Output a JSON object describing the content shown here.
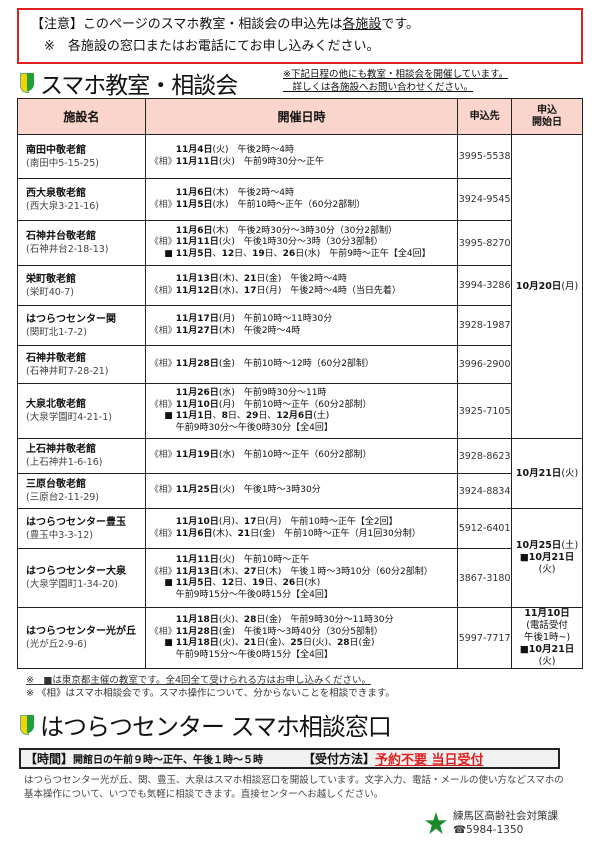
{
  "notice": {
    "line1_a": "【注意】このページのスマホ教室・相談会の申込先は",
    "line1_u": "各施設",
    "line1_b": "です。",
    "line2": "　※　各施設の窓口またはお電話にてお申し込みください。"
  },
  "title1": "スマホ教室・相談会",
  "subnote": [
    "※下記日程の他にも教室・相談会を開催しています。",
    "　詳しくは各施設へお問い合わせください。"
  ],
  "headers": {
    "facility": "施設名",
    "datetime": "開催日時",
    "tel": "申込先",
    "start1": "申込",
    "start2": "開始日"
  },
  "rows": [
    {
      "name": "南田中敬老館",
      "addr": "(南田中5-15-25)",
      "tel": "3995-5538",
      "lines": [
        {
          "p": "",
          "s": [
            [
              "11月4日",
              1
            ],
            [
              "(火)　午後2時～4時",
              0
            ]
          ]
        },
        {
          "p": "《相》",
          "s": [
            [
              "11月11日",
              1
            ],
            [
              "(火)　午前9時30分～正午",
              0
            ]
          ]
        }
      ]
    },
    {
      "name": "西大泉敬老館",
      "addr": "(西大泉3-21-16)",
      "tel": "3924-9545",
      "lines": [
        {
          "p": "",
          "s": [
            [
              "11月6日",
              1
            ],
            [
              "(木)　午後2時～4時",
              0
            ]
          ]
        },
        {
          "p": "《相》",
          "s": [
            [
              "11月5日",
              1
            ],
            [
              "(水)　午前10時～正午（60分2部制）",
              0
            ]
          ]
        }
      ]
    },
    {
      "name": "石神井台敬老館",
      "addr": "(石神井台2-18-13)",
      "tel": "3995-8270",
      "lines": [
        {
          "p": "",
          "s": [
            [
              "11月6日",
              1
            ],
            [
              "(木)　午後2時30分～3時30分（30分2部制）",
              0
            ]
          ]
        },
        {
          "p": "《相》",
          "s": [
            [
              "11月11日",
              1
            ],
            [
              "(火)　午後1時30分～3時（30分3部制）",
              0
            ]
          ]
        },
        {
          "p": "■",
          "s": [
            [
              "11月5日",
              1
            ],
            [
              "、",
              0
            ],
            [
              "12",
              1
            ],
            [
              "日、",
              0
            ],
            [
              "19",
              1
            ],
            [
              "日、",
              0
            ],
            [
              "26",
              1
            ],
            [
              "日(水)　午前9時～正午【全4回】",
              0
            ]
          ]
        }
      ]
    },
    {
      "name": "栄町敬老館",
      "addr": "(栄町40-7)",
      "tel": "3994-3286",
      "lines": [
        {
          "p": "",
          "s": [
            [
              "11月13日",
              1
            ],
            [
              "(木)、",
              0
            ],
            [
              "21",
              1
            ],
            [
              "日(金)　午後2時～4時",
              0
            ]
          ]
        },
        {
          "p": "《相》",
          "s": [
            [
              "11月12日",
              1
            ],
            [
              "(水)、",
              0
            ],
            [
              "17",
              1
            ],
            [
              "日(月)　午後2時～4時（当日先着）",
              0
            ]
          ]
        }
      ]
    },
    {
      "name": "はつらつセンター関",
      "addr": "(関町北1-7-2)",
      "tel": "3928-1987",
      "lines": [
        {
          "p": "",
          "s": [
            [
              "11月17日",
              1
            ],
            [
              "(月)　午前10時～11時30分",
              0
            ]
          ]
        },
        {
          "p": "《相》",
          "s": [
            [
              "11月27日",
              1
            ],
            [
              "(木)　午後2時～4時",
              0
            ]
          ]
        }
      ]
    },
    {
      "name": "石神井敬老館",
      "addr": "(石神井町7-28-21)",
      "tel": "3996-2900",
      "lines": [
        {
          "p": "《相》",
          "s": [
            [
              "11月28日",
              1
            ],
            [
              "(金)　午前10時～12時（60分2部制）",
              0
            ]
          ]
        }
      ]
    },
    {
      "name": "大泉北敬老館",
      "addr": "(大泉学園町4-21-1)",
      "tel": "3925-7105",
      "lines": [
        {
          "p": "",
          "s": [
            [
              "11月26日",
              1
            ],
            [
              "(水)　午前9時30分～11時",
              0
            ]
          ]
        },
        {
          "p": "《相》",
          "s": [
            [
              "11月10日",
              1
            ],
            [
              "(月)　午前10時～正午（60分2部制）",
              0
            ]
          ]
        },
        {
          "p": "■",
          "s": [
            [
              "11月1日",
              1
            ],
            [
              "、",
              0
            ],
            [
              "8",
              1
            ],
            [
              "日、",
              0
            ],
            [
              "29",
              1
            ],
            [
              "日、",
              0
            ],
            [
              "12月6日",
              1
            ],
            [
              "(土)",
              0
            ]
          ]
        },
        {
          "p": "",
          "s": [
            [
              "午前9時30分～午後0時30分【全4回】",
              0
            ]
          ]
        }
      ]
    },
    {
      "name": "上石神井敬老館",
      "addr": "(上石神井1-6-16)",
      "tel": "3928-8623",
      "lines": [
        {
          "p": "《相》",
          "s": [
            [
              "11月19日",
              1
            ],
            [
              "(水)　午前10時～正午（60分2部制）",
              0
            ]
          ]
        }
      ]
    },
    {
      "name": "三原台敬老館",
      "addr": "(三原台2-11-29)",
      "tel": "3924-8834",
      "lines": [
        {
          "p": "《相》",
          "s": [
            [
              "11月25日",
              1
            ],
            [
              "(火)　午後1時～3時30分",
              0
            ]
          ]
        }
      ]
    },
    {
      "name": "はつらつセンター豊玉",
      "addr": "(豊玉中3-3-12)",
      "tel": "5912-6401",
      "lines": [
        {
          "p": "",
          "s": [
            [
              "11月10日",
              1
            ],
            [
              "(月)、",
              0
            ],
            [
              "17",
              1
            ],
            [
              "日(月)　午前10時～正午【全2回】",
              0
            ]
          ]
        },
        {
          "p": "《相》",
          "s": [
            [
              "11月6日",
              1
            ],
            [
              "(木)、",
              0
            ],
            [
              "21",
              1
            ],
            [
              "日(金)　午前10時～正午（月1回30分制）",
              0
            ]
          ]
        }
      ]
    },
    {
      "name": "はつらつセンター大泉",
      "addr": "(大泉学園町1-34-20)",
      "tel": "3867-3180",
      "lines": [
        {
          "p": "",
          "s": [
            [
              "11月11日",
              1
            ],
            [
              "(火)　午前10時～正午",
              0
            ]
          ]
        },
        {
          "p": "《相》",
          "s": [
            [
              "11月13日",
              1
            ],
            [
              "(木)、",
              0
            ],
            [
              "27",
              1
            ],
            [
              "日(木)　午後１時～3時10分（60分2部制）",
              0
            ]
          ]
        },
        {
          "p": "■",
          "s": [
            [
              "11月5日",
              1
            ],
            [
              "、",
              0
            ],
            [
              "12",
              1
            ],
            [
              "日、",
              0
            ],
            [
              "19",
              1
            ],
            [
              "日、",
              0
            ],
            [
              "26",
              1
            ],
            [
              "日(水)",
              0
            ]
          ]
        },
        {
          "p": "",
          "s": [
            [
              "午前9時15分～午後0時15分【全4回】",
              0
            ]
          ]
        }
      ]
    },
    {
      "name": "はつらつセンター光が丘",
      "addr": "(光が丘2-9-6)",
      "tel": "5997-7717",
      "lines": [
        {
          "p": "",
          "s": [
            [
              "11月18日",
              1
            ],
            [
              "(火)、",
              0
            ],
            [
              "28",
              1
            ],
            [
              "日(金)　午前9時30分～11時30分",
              0
            ]
          ]
        },
        {
          "p": "《相》",
          "s": [
            [
              "11月28日",
              1
            ],
            [
              "(金)　午後1時～3時40分（30分5部制）",
              0
            ]
          ]
        },
        {
          "p": "■",
          "s": [
            [
              "11月18日",
              1
            ],
            [
              "(火)、",
              0
            ],
            [
              "21",
              1
            ],
            [
              "日(金)、",
              0
            ],
            [
              "25",
              1
            ],
            [
              "日(火)、",
              0
            ],
            [
              "28",
              1
            ],
            [
              "日(金)",
              0
            ]
          ]
        },
        {
          "p": "",
          "s": [
            [
              "午前9時15分～午後0時15分【全4回】",
              0
            ]
          ]
        }
      ]
    }
  ],
  "start_groups": [
    {
      "span": 7,
      "lines": [
        [
          [
            "10月20日",
            1
          ],
          [
            "(月)",
            0
          ]
        ]
      ]
    },
    {
      "span": 2,
      "lines": [
        [
          [
            "10月21日",
            1
          ],
          [
            "(火)",
            0
          ]
        ]
      ]
    },
    {
      "span": 2,
      "lines": [
        [
          [
            "10月25日",
            1
          ],
          [
            "(土)",
            0
          ]
        ],
        [
          [
            "■10月21日",
            1
          ],
          [
            "(火)",
            0
          ]
        ]
      ]
    },
    {
      "span": 1,
      "lines": [
        [
          [
            "11月10日",
            1
          ]
        ],
        [
          [
            "(電話受付",
            0
          ]
        ],
        [
          [
            "午後1時~)",
            0
          ]
        ],
        [
          [
            "■10月21日",
            1
          ],
          [
            "(火)",
            0
          ]
        ]
      ]
    }
  ],
  "notes": [
    "※　■は東京都主催の教室です。全4回全て受けられる方はお申し込みください。",
    "※ 《相》はスマホ相談会です。スマホ操作について、分からないことを相談できます。"
  ],
  "title2": "はつらつセンター スマホ相談窓口",
  "info": {
    "time_label": "【時間】",
    "time_value": "開館日の午前９時～正午、午後１時～５時",
    "method_label": "【受付方法】",
    "method_value": "予約不要 当日受付"
  },
  "paragraph": "はつらつセンター光が丘、関、豊玉、大泉はスマホ相談窓口を開設しています。文字入力、電話・メールの使い方などスマホの基本操作について、いつでも気軽に相談できます。直接センターへお越しください。",
  "footer": {
    "dept": "練馬区高齢社会対策課",
    "tel": "☎5984-1350"
  },
  "colors": {
    "notice_border": "#e02020",
    "header_bg": "#f9d5cb",
    "accent_red": "#e02020",
    "logo_green": "#1a8a2a"
  }
}
